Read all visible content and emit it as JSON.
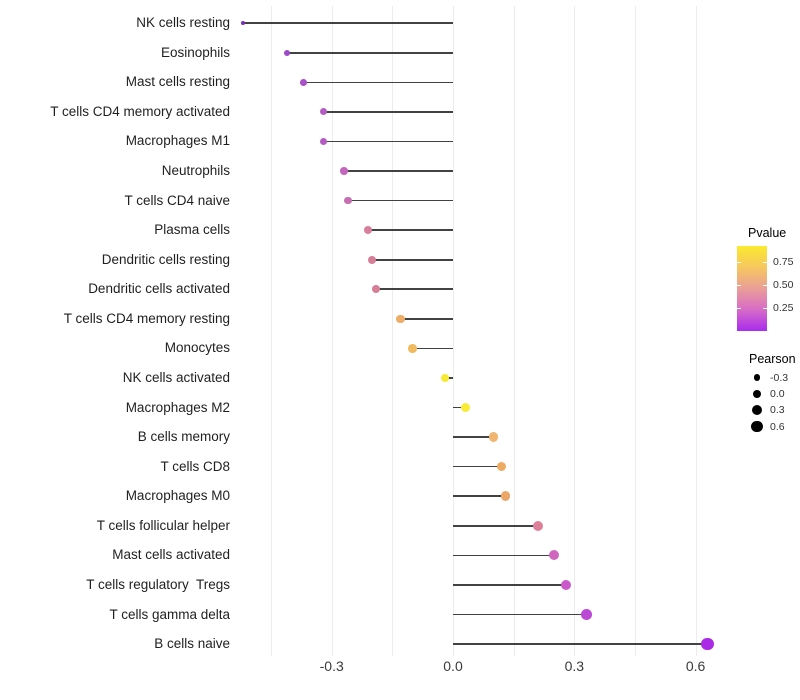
{
  "chart_data": {
    "type": "scatter",
    "subtype": "lollipop",
    "orientation": "horizontal",
    "title": "",
    "xlabel": "",
    "ylabel": "",
    "xlim": [
      -0.55,
      0.64
    ],
    "grid": "vertical-only",
    "x_tick_labels": [
      "-0.3",
      "0.0",
      "0.3",
      "0.6"
    ],
    "x_tick_values": [
      -0.3,
      0.0,
      0.3,
      0.6
    ],
    "gridline_values": [
      -0.45,
      -0.3,
      -0.15,
      0,
      0.15,
      0.3,
      0.45,
      0.6
    ],
    "categories": [
      "NK cells resting",
      "Eosinophils",
      "Mast cells resting",
      "T cells CD4 memory activated",
      "Macrophages M1",
      "Neutrophils",
      "T cells CD4 naive",
      "Plasma cells",
      "Dendritic cells resting",
      "Dendritic cells activated",
      "T cells CD4 memory resting",
      "Monocytes",
      "NK cells activated",
      "Macrophages M2",
      "B cells memory",
      "T cells CD8",
      "Macrophages M0",
      "T cells follicular helper",
      "Mast cells activated",
      "T cells regulatory  Tregs",
      "T cells gamma delta",
      "B cells naive"
    ],
    "points": [
      {
        "label": "NK cells resting",
        "pearson": -0.52,
        "pvalue_est": 0.05,
        "color": "#7B2FBE",
        "radius": 2.0
      },
      {
        "label": "Eosinophils",
        "pearson": -0.41,
        "pvalue_est": 0.13,
        "color": "#9C4AC8",
        "radius": 3.2
      },
      {
        "label": "Mast cells resting",
        "pearson": -0.37,
        "pvalue_est": 0.16,
        "color": "#A851C8",
        "radius": 3.4
      },
      {
        "label": "T cells CD4 memory activated",
        "pearson": -0.32,
        "pvalue_est": 0.19,
        "color": "#B55BC4",
        "radius": 3.6
      },
      {
        "label": "Macrophages M1",
        "pearson": -0.32,
        "pvalue_est": 0.19,
        "color": "#B55BC4",
        "radius": 3.6
      },
      {
        "label": "Neutrophils",
        "pearson": -0.27,
        "pvalue_est": 0.26,
        "color": "#C466BC",
        "radius": 3.8
      },
      {
        "label": "T cells CD4 naive",
        "pearson": -0.26,
        "pvalue_est": 0.3,
        "color": "#C76DB2",
        "radius": 3.8
      },
      {
        "label": "Plasma cells",
        "pearson": -0.21,
        "pvalue_est": 0.42,
        "color": "#D67E9C",
        "radius": 4.0
      },
      {
        "label": "Dendritic cells resting",
        "pearson": -0.2,
        "pvalue_est": 0.43,
        "color": "#D67E98",
        "radius": 4.0
      },
      {
        "label": "Dendritic cells activated",
        "pearson": -0.19,
        "pvalue_est": 0.44,
        "color": "#D67E96",
        "radius": 4.0
      },
      {
        "label": "T cells CD4 memory resting",
        "pearson": -0.13,
        "pvalue_est": 0.66,
        "color": "#EEAC69",
        "radius": 4.2
      },
      {
        "label": "Monocytes",
        "pearson": -0.1,
        "pvalue_est": 0.72,
        "color": "#F0BA5F",
        "radius": 4.3
      },
      {
        "label": "NK cells activated",
        "pearson": -0.02,
        "pvalue_est": 0.9,
        "color": "#F8EA33",
        "radius": 4.4
      },
      {
        "label": "Macrophages M2",
        "pearson": 0.03,
        "pvalue_est": 0.91,
        "color": "#F9EC37",
        "radius": 4.5
      },
      {
        "label": "B cells memory",
        "pearson": 0.1,
        "pvalue_est": 0.68,
        "color": "#F0B56E",
        "radius": 4.7
      },
      {
        "label": "T cells CD8",
        "pearson": 0.12,
        "pvalue_est": 0.64,
        "color": "#EDAA62",
        "radius": 4.8
      },
      {
        "label": "Macrophages M0",
        "pearson": 0.13,
        "pvalue_est": 0.63,
        "color": "#EBA668",
        "radius": 4.8
      },
      {
        "label": "T cells follicular helper",
        "pearson": 0.21,
        "pvalue_est": 0.45,
        "color": "#DC8099",
        "radius": 5.0
      },
      {
        "label": "Mast cells activated",
        "pearson": 0.25,
        "pvalue_est": 0.31,
        "color": "#D066BE",
        "radius": 5.1
      },
      {
        "label": "T cells regulatory  Tregs",
        "pearson": 0.28,
        "pvalue_est": 0.26,
        "color": "#CA58CB",
        "radius": 5.2
      },
      {
        "label": "T cells gamma delta",
        "pearson": 0.33,
        "pvalue_est": 0.2,
        "color": "#BC49D6",
        "radius": 5.4
      },
      {
        "label": "B cells naive",
        "pearson": 0.63,
        "pvalue_est": 0.1,
        "color": "#A92BE6",
        "radius": 6.4
      }
    ]
  },
  "legend": {
    "pvalue": {
      "title": "Pvalue",
      "tick_labels": [
        "0.75",
        "0.50",
        "0.25"
      ],
      "tick_values": [
        0.75,
        0.5,
        0.25
      ],
      "scale_range": [
        0,
        0.92
      ],
      "gradient_stops_low_to_high": [
        "#A92CEE",
        "#D76BC7",
        "#EA9E97",
        "#F6C75F",
        "#FBEA2F"
      ]
    },
    "pearson": {
      "title": "Pearson",
      "dot_color": "#000000",
      "items": [
        {
          "label": "-0.3",
          "radius": 3.3
        },
        {
          "label": "0.0",
          "radius": 4.3
        },
        {
          "label": "0.3",
          "radius": 5.0
        },
        {
          "label": "0.6",
          "radius": 5.7
        }
      ]
    }
  },
  "colors": {
    "background": "#FFFFFF",
    "gridline": "#ECECEC",
    "stem": "#424242",
    "label_text": "#1F1F1F",
    "tick_text": "#3A3A3A"
  }
}
